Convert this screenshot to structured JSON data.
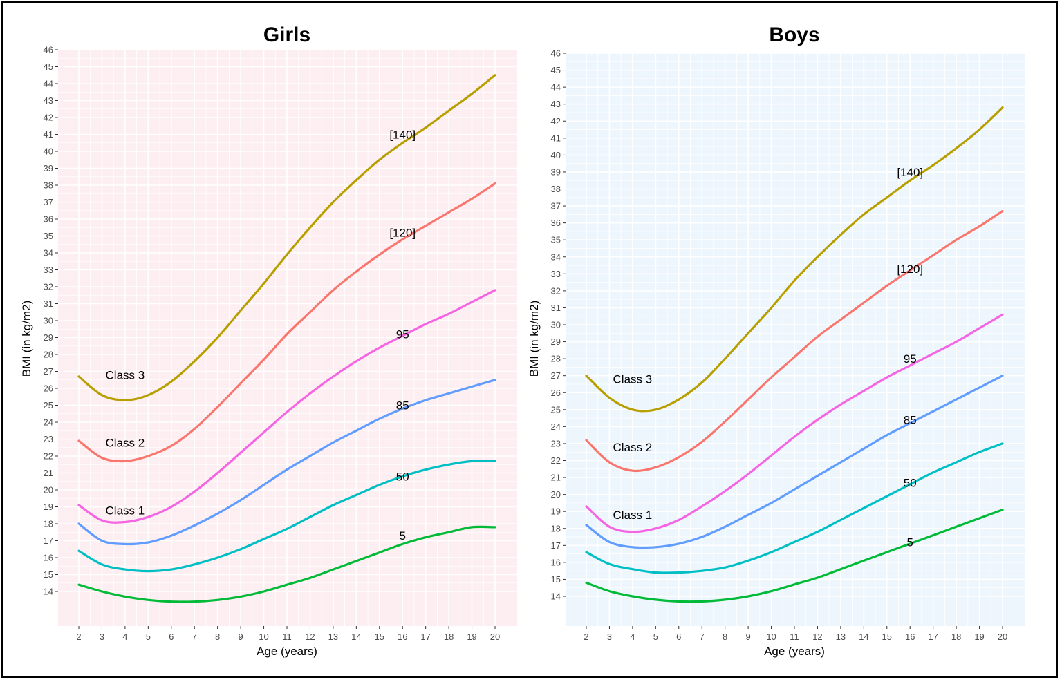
{
  "chart_data": [
    {
      "type": "line",
      "title": "Girls",
      "xlabel": "Age (years)",
      "ylabel": "BMI (in kg/m2)",
      "xlim": [
        2,
        20
      ],
      "ylim": [
        14,
        46
      ],
      "x_ticks": [
        2,
        3,
        4,
        5,
        6,
        7,
        8,
        9,
        10,
        11,
        12,
        13,
        14,
        15,
        16,
        17,
        18,
        19,
        20
      ],
      "y_ticks": [
        14,
        15,
        16,
        17,
        18,
        19,
        20,
        21,
        22,
        23,
        24,
        25,
        26,
        27,
        28,
        29,
        30,
        31,
        32,
        33,
        34,
        35,
        36,
        37,
        38,
        39,
        40,
        41,
        42,
        43,
        44,
        45,
        46
      ],
      "grid": true,
      "panel_bg": "#fdeef1",
      "x": [
        2,
        3,
        4,
        5,
        6,
        7,
        8,
        9,
        10,
        11,
        12,
        13,
        14,
        15,
        16,
        17,
        18,
        19,
        20
      ],
      "series": [
        {
          "name": "[140]",
          "color": "#b79f00",
          "values": [
            26.7,
            25.6,
            25.3,
            25.6,
            26.4,
            27.6,
            29.0,
            30.6,
            32.2,
            33.9,
            35.5,
            37.0,
            38.3,
            39.5,
            40.5,
            41.4,
            42.4,
            43.4,
            44.5
          ]
        },
        {
          "name": "[120]",
          "color": "#f8766d",
          "values": [
            22.9,
            21.9,
            21.7,
            22.0,
            22.6,
            23.6,
            24.9,
            26.3,
            27.7,
            29.2,
            30.5,
            31.8,
            32.9,
            33.9,
            34.8,
            35.6,
            36.4,
            37.2,
            38.1
          ]
        },
        {
          "name": "95",
          "color": "#f564e3",
          "values": [
            19.1,
            18.2,
            18.1,
            18.4,
            19.0,
            19.9,
            21.0,
            22.2,
            23.4,
            24.6,
            25.7,
            26.7,
            27.6,
            28.4,
            29.1,
            29.8,
            30.4,
            31.1,
            31.8
          ]
        },
        {
          "name": "85",
          "color": "#619cff",
          "values": [
            18.0,
            17.0,
            16.8,
            16.9,
            17.3,
            17.9,
            18.6,
            19.4,
            20.3,
            21.2,
            22.0,
            22.8,
            23.5,
            24.2,
            24.8,
            25.3,
            25.7,
            26.1,
            26.5
          ]
        },
        {
          "name": "50",
          "color": "#00bfc4",
          "values": [
            16.4,
            15.6,
            15.3,
            15.2,
            15.3,
            15.6,
            16.0,
            16.5,
            17.1,
            17.7,
            18.4,
            19.1,
            19.7,
            20.3,
            20.8,
            21.2,
            21.5,
            21.7,
            21.7
          ]
        },
        {
          "name": "5",
          "color": "#00ba38",
          "values": [
            14.4,
            14.0,
            13.7,
            13.5,
            13.4,
            13.4,
            13.5,
            13.7,
            14.0,
            14.4,
            14.8,
            15.3,
            15.8,
            16.3,
            16.8,
            17.2,
            17.5,
            17.8,
            17.8
          ]
        }
      ],
      "annotations": [
        {
          "text": "Class 3",
          "x": 4,
          "y": 26.8
        },
        {
          "text": "Class 2",
          "x": 4,
          "y": 22.8
        },
        {
          "text": "Class 1",
          "x": 4,
          "y": 18.8
        },
        {
          "text": "[140]",
          "x": 16,
          "y": 41
        },
        {
          "text": "[120]",
          "x": 16,
          "y": 35.2
        },
        {
          "text": "95",
          "x": 16,
          "y": 29.2
        },
        {
          "text": "85",
          "x": 16,
          "y": 25
        },
        {
          "text": "50",
          "x": 16,
          "y": 20.8
        },
        {
          "text": "5",
          "x": 16,
          "y": 17.3
        }
      ]
    },
    {
      "type": "line",
      "title": "Boys",
      "xlabel": "Age (years)",
      "ylabel": "BMI (in kg/m2)",
      "xlim": [
        2,
        20
      ],
      "ylim": [
        14,
        46
      ],
      "x_ticks": [
        2,
        3,
        4,
        5,
        6,
        7,
        8,
        9,
        10,
        11,
        12,
        13,
        14,
        15,
        16,
        17,
        18,
        19,
        20
      ],
      "y_ticks": [
        14,
        15,
        16,
        17,
        18,
        19,
        20,
        21,
        22,
        23,
        24,
        25,
        26,
        27,
        28,
        29,
        30,
        31,
        32,
        33,
        34,
        35,
        36,
        37,
        38,
        39,
        40,
        41,
        42,
        43,
        44,
        45,
        46
      ],
      "grid": true,
      "panel_bg": "#eef6fd",
      "x": [
        2,
        3,
        4,
        5,
        6,
        7,
        8,
        9,
        10,
        11,
        12,
        13,
        14,
        15,
        16,
        17,
        18,
        19,
        20
      ],
      "series": [
        {
          "name": "[140]",
          "color": "#b79f00",
          "values": [
            27.0,
            25.7,
            25.0,
            25.0,
            25.6,
            26.6,
            28.0,
            29.5,
            31.0,
            32.6,
            34.0,
            35.3,
            36.5,
            37.5,
            38.5,
            39.4,
            40.4,
            41.5,
            42.8
          ]
        },
        {
          "name": "[120]",
          "color": "#f8766d",
          "values": [
            23.2,
            21.9,
            21.4,
            21.6,
            22.2,
            23.1,
            24.3,
            25.6,
            26.9,
            28.1,
            29.3,
            30.3,
            31.3,
            32.3,
            33.2,
            34.1,
            35.0,
            35.8,
            36.7
          ]
        },
        {
          "name": "95",
          "color": "#f564e3",
          "values": [
            19.3,
            18.1,
            17.8,
            18.0,
            18.5,
            19.3,
            20.2,
            21.2,
            22.3,
            23.4,
            24.4,
            25.3,
            26.1,
            26.9,
            27.6,
            28.3,
            29.0,
            29.8,
            30.6
          ]
        },
        {
          "name": "85",
          "color": "#619cff",
          "values": [
            18.2,
            17.2,
            16.9,
            16.9,
            17.1,
            17.5,
            18.1,
            18.8,
            19.5,
            20.3,
            21.1,
            21.9,
            22.7,
            23.5,
            24.2,
            24.9,
            25.6,
            26.3,
            27.0
          ]
        },
        {
          "name": "50",
          "color": "#00bfc4",
          "values": [
            16.6,
            15.9,
            15.6,
            15.4,
            15.4,
            15.5,
            15.7,
            16.1,
            16.6,
            17.2,
            17.8,
            18.5,
            19.2,
            19.9,
            20.6,
            21.3,
            21.9,
            22.5,
            23.0
          ]
        },
        {
          "name": "5",
          "color": "#00ba38",
          "values": [
            14.8,
            14.3,
            14.0,
            13.8,
            13.7,
            13.7,
            13.8,
            14.0,
            14.3,
            14.7,
            15.1,
            15.6,
            16.1,
            16.6,
            17.1,
            17.6,
            18.1,
            18.6,
            19.1
          ]
        }
      ],
      "annotations": [
        {
          "text": "Class 3",
          "x": 4,
          "y": 26.8
        },
        {
          "text": "Class 2",
          "x": 4,
          "y": 22.8
        },
        {
          "text": "Class 1",
          "x": 4,
          "y": 18.8
        },
        {
          "text": "[140]",
          "x": 16,
          "y": 39
        },
        {
          "text": "[120]",
          "x": 16,
          "y": 33.3
        },
        {
          "text": "95",
          "x": 16,
          "y": 28
        },
        {
          "text": "85",
          "x": 16,
          "y": 24.4
        },
        {
          "text": "50",
          "x": 16,
          "y": 20.7
        },
        {
          "text": "5",
          "x": 16,
          "y": 17.2
        }
      ]
    }
  ]
}
